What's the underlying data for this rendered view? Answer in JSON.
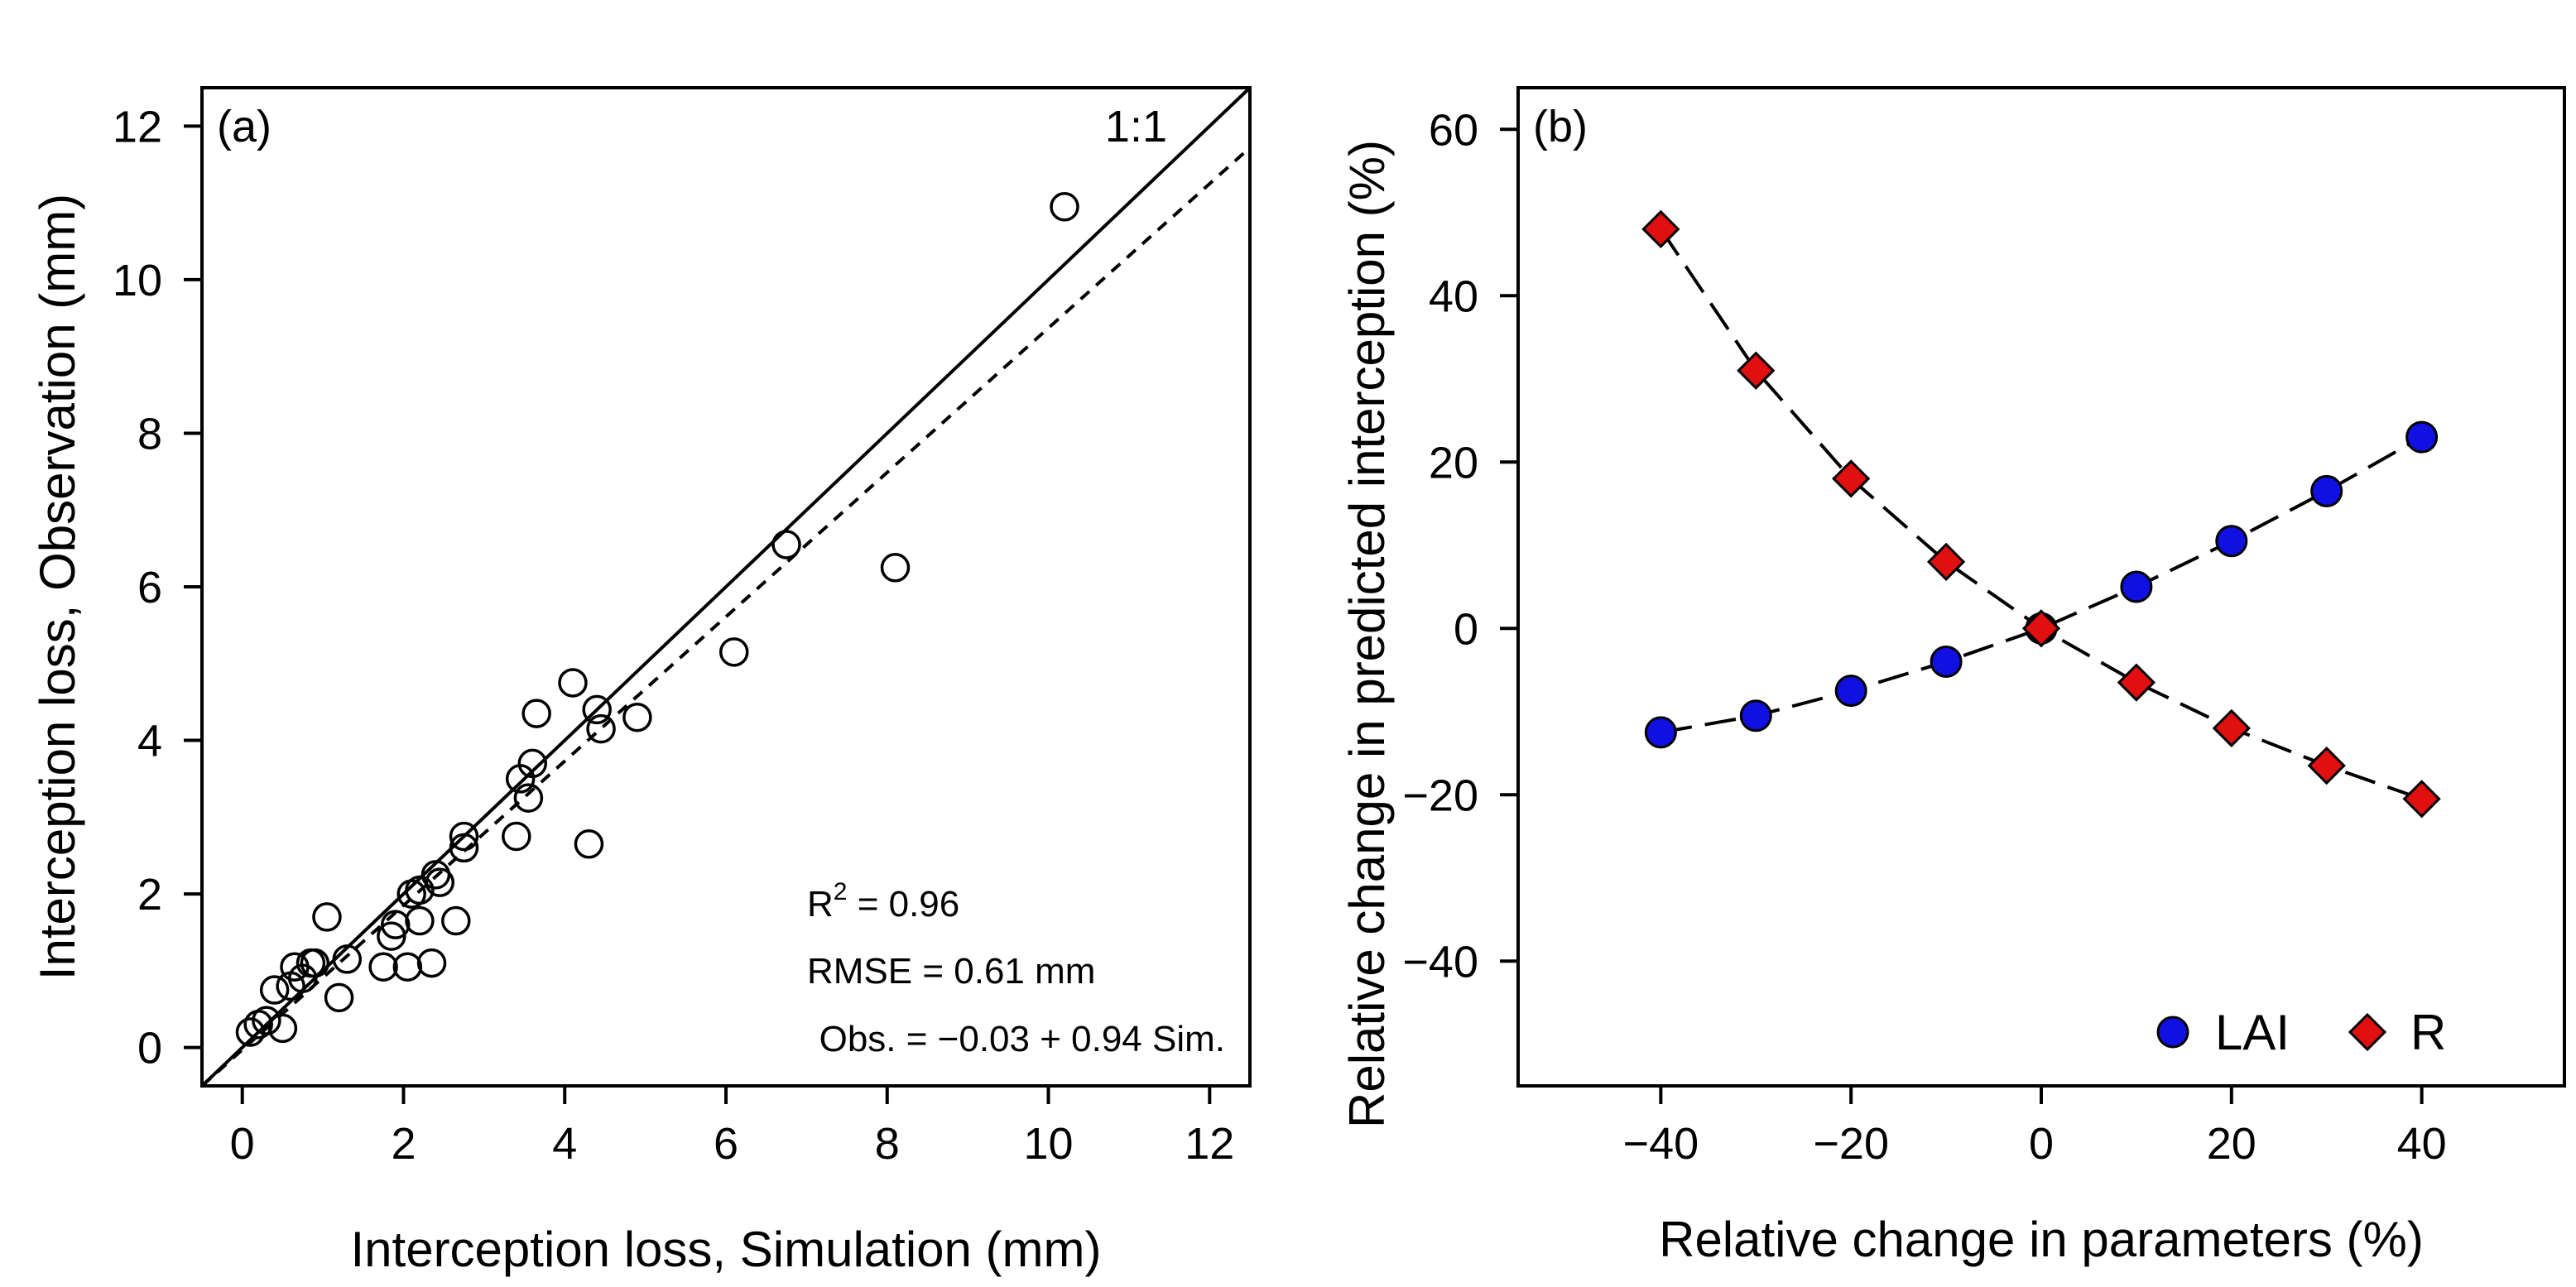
{
  "chart_data": [
    {
      "type": "scatter",
      "panel_label": "(a)",
      "xlabel": "Interception loss, Simulation (mm)",
      "ylabel": "Interception loss, Observation (mm)",
      "xlim": [
        -0.5,
        12.5
      ],
      "ylim": [
        -0.5,
        12.5
      ],
      "xticks": [
        0,
        2,
        4,
        6,
        8,
        10,
        12
      ],
      "yticks": [
        0,
        2,
        4,
        6,
        8,
        10,
        12
      ],
      "one_to_one_label": "1:1",
      "fit": {
        "intercept": -0.03,
        "slope": 0.94
      },
      "stats": {
        "r2_prefix": "R",
        "r2_sup": "2",
        "r2_text": " = 0.96",
        "rmse_text": "RMSE = 0.61 mm",
        "equation_text": "Obs. = −0.03 + 0.94 Sim."
      },
      "points": [
        [
          0.1,
          0.2
        ],
        [
          0.2,
          0.3
        ],
        [
          0.3,
          0.35
        ],
        [
          0.4,
          0.75
        ],
        [
          0.5,
          0.25
        ],
        [
          0.6,
          0.8
        ],
        [
          0.65,
          1.05
        ],
        [
          0.75,
          0.9
        ],
        [
          0.85,
          1.1
        ],
        [
          0.9,
          1.1
        ],
        [
          1.05,
          1.7
        ],
        [
          1.2,
          0.65
        ],
        [
          1.3,
          1.15
        ],
        [
          1.75,
          1.05
        ],
        [
          1.85,
          1.45
        ],
        [
          1.9,
          1.6
        ],
        [
          2.05,
          1.05
        ],
        [
          2.1,
          2.0
        ],
        [
          2.2,
          2.05
        ],
        [
          2.2,
          1.65
        ],
        [
          2.35,
          1.1
        ],
        [
          2.4,
          2.25
        ],
        [
          2.45,
          2.15
        ],
        [
          2.65,
          1.65
        ],
        [
          2.75,
          2.75
        ],
        [
          2.75,
          2.6
        ],
        [
          3.4,
          2.75
        ],
        [
          3.45,
          3.5
        ],
        [
          3.55,
          3.25
        ],
        [
          3.6,
          3.7
        ],
        [
          3.65,
          4.35
        ],
        [
          4.1,
          4.75
        ],
        [
          4.3,
          2.65
        ],
        [
          4.4,
          4.4
        ],
        [
          4.45,
          4.15
        ],
        [
          4.9,
          4.3
        ],
        [
          6.1,
          5.15
        ],
        [
          6.75,
          6.55
        ],
        [
          8.1,
          6.25
        ],
        [
          10.2,
          10.95
        ]
      ]
    },
    {
      "type": "line",
      "panel_label": "(b)",
      "xlabel": "Relative change in parameters (%)",
      "ylabel": "Relative change in predicted interception (%)",
      "xlim": [
        -55,
        55
      ],
      "ylim": [
        -55,
        65
      ],
      "xticks": [
        -40,
        -20,
        0,
        20,
        40
      ],
      "yticks": [
        -40,
        -20,
        0,
        20,
        40,
        60
      ],
      "x": [
        -40,
        -30,
        -20,
        -10,
        0,
        10,
        20,
        30,
        40
      ],
      "series": [
        {
          "name": "LAI",
          "marker": "circle",
          "color": "#1010e0",
          "values": [
            -12.5,
            -10.5,
            -7.5,
            -4,
            0,
            5,
            10.5,
            16.5,
            23
          ]
        },
        {
          "name": "R",
          "marker": "diamond",
          "color": "#e01010",
          "values": [
            48,
            31,
            18,
            8,
            0,
            -6.5,
            -12,
            -16.5,
            -20.5
          ]
        }
      ],
      "legend_position": "bottom-right"
    }
  ]
}
